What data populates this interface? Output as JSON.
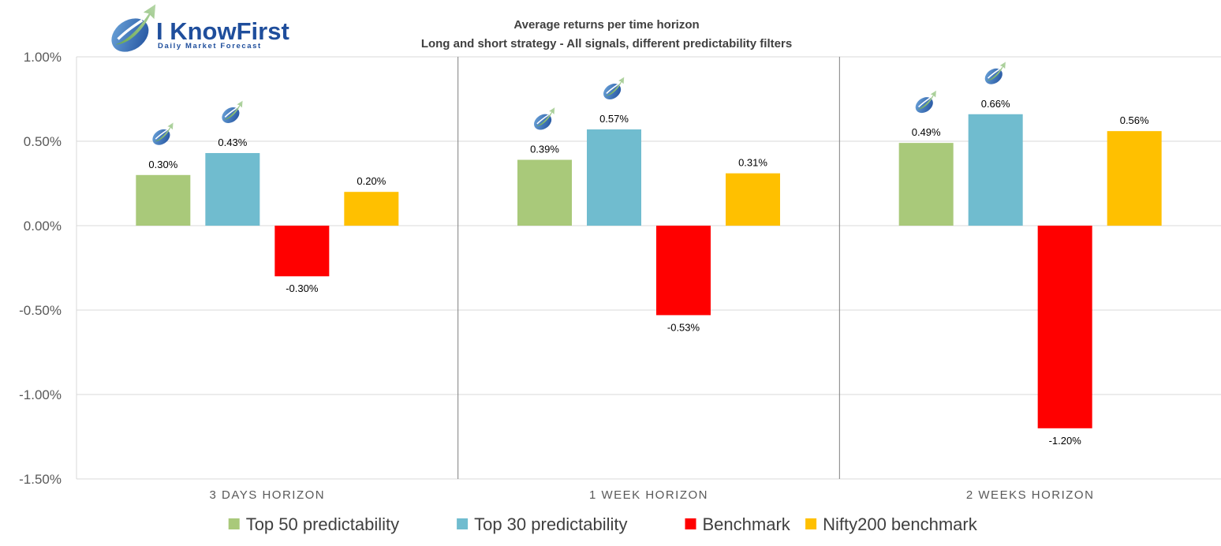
{
  "brand": {
    "name": "I KnowFirst",
    "tagline": "Daily Market Forecast"
  },
  "colors": {
    "Top 50 predictability": "#a9c97a",
    "Top 30 predictability": "#70bccf",
    "Benchmark": "#ff0000",
    "Nifty200 benchmark": "#ffc000",
    "grid": "#d9d9d9",
    "separator": "#7f7f7f"
  },
  "chart_data": {
    "type": "bar",
    "title": "Average returns per time horizon",
    "subtitle": "Long and short strategy - All signals, different predictability filters",
    "categories": [
      "3 DAYS HORIZON",
      "1 WEEK HORIZON",
      "2 WEEKS HORIZON"
    ],
    "series": [
      {
        "name": "Top 50 predictability",
        "values": [
          0.3,
          0.39,
          0.49
        ],
        "labels": [
          "0.30%",
          "0.39%",
          "0.49%"
        ],
        "logo_marker": true
      },
      {
        "name": "Top 30 predictability",
        "values": [
          0.43,
          0.57,
          0.66
        ],
        "labels": [
          "0.43%",
          "0.57%",
          "0.66%"
        ],
        "logo_marker": true
      },
      {
        "name": "Benchmark",
        "values": [
          -0.3,
          -0.53,
          -1.2
        ],
        "labels": [
          "-0.30%",
          "-0.53%",
          "-1.20%"
        ],
        "logo_marker": false
      },
      {
        "name": "Nifty200 benchmark",
        "values": [
          0.2,
          0.31,
          0.56
        ],
        "labels": [
          "0.20%",
          "0.31%",
          "0.56%"
        ],
        "logo_marker": false
      }
    ],
    "ylim": [
      -1.5,
      1.0
    ],
    "yticks": [
      1.0,
      0.5,
      0.0,
      -0.5,
      -1.0,
      -1.5
    ],
    "ytick_labels": [
      "1.00%",
      "0.50%",
      "0.00%",
      "-0.50%",
      "-1.00%",
      "-1.50%"
    ],
    "grid": true,
    "legend_position": "bottom-center"
  }
}
